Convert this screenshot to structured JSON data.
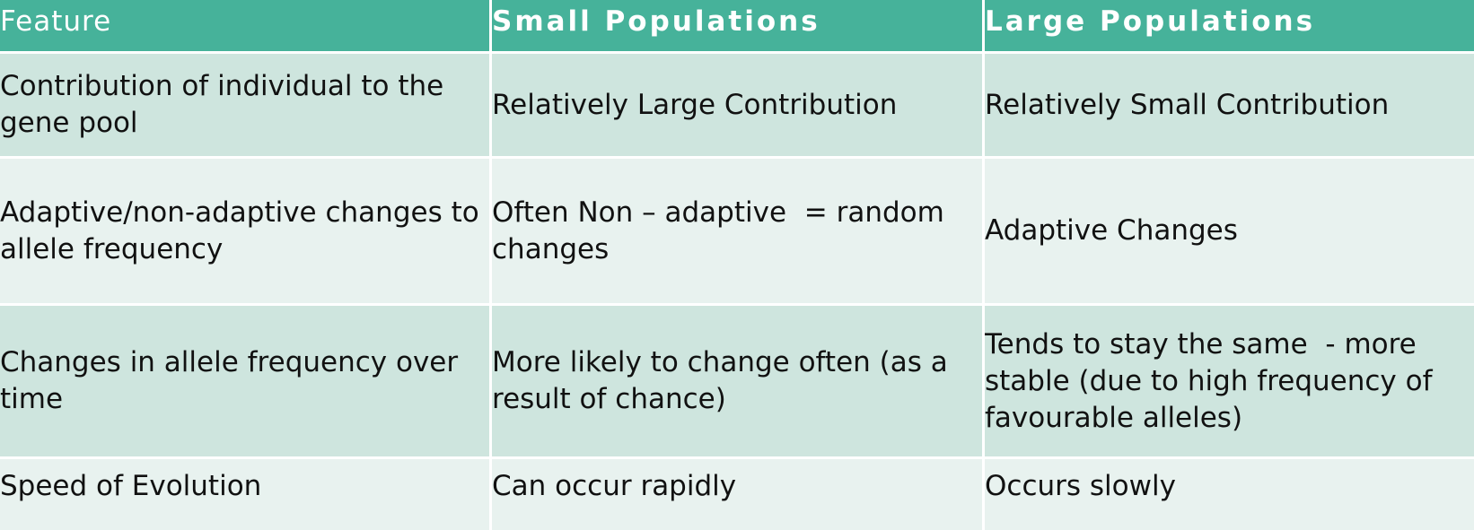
{
  "table": {
    "headers": [
      "Feature",
      "Small Populations",
      "Large Populations"
    ],
    "rows": [
      [
        "Contribution of individual to the gene pool",
        "Relatively Large Contribution",
        "Relatively Small Contribution"
      ],
      [
        "Adaptive/non-adaptive changes to allele frequency",
        "Often Non – adaptive  = random changes",
        "Adaptive Changes"
      ],
      [
        "Changes in allele frequency over time",
        "More likely to change often (as a result of chance)",
        "Tends to stay the same  - more stable (due to high frequency of favourable alleles)"
      ],
      [
        "Speed of Evolution",
        "Can occur rapidly",
        "Occurs slowly"
      ]
    ]
  },
  "colors": {
    "header_bg": "#46b29a",
    "row_band_dark": "#cee5de",
    "row_band_light": "#e8f2ef"
  }
}
